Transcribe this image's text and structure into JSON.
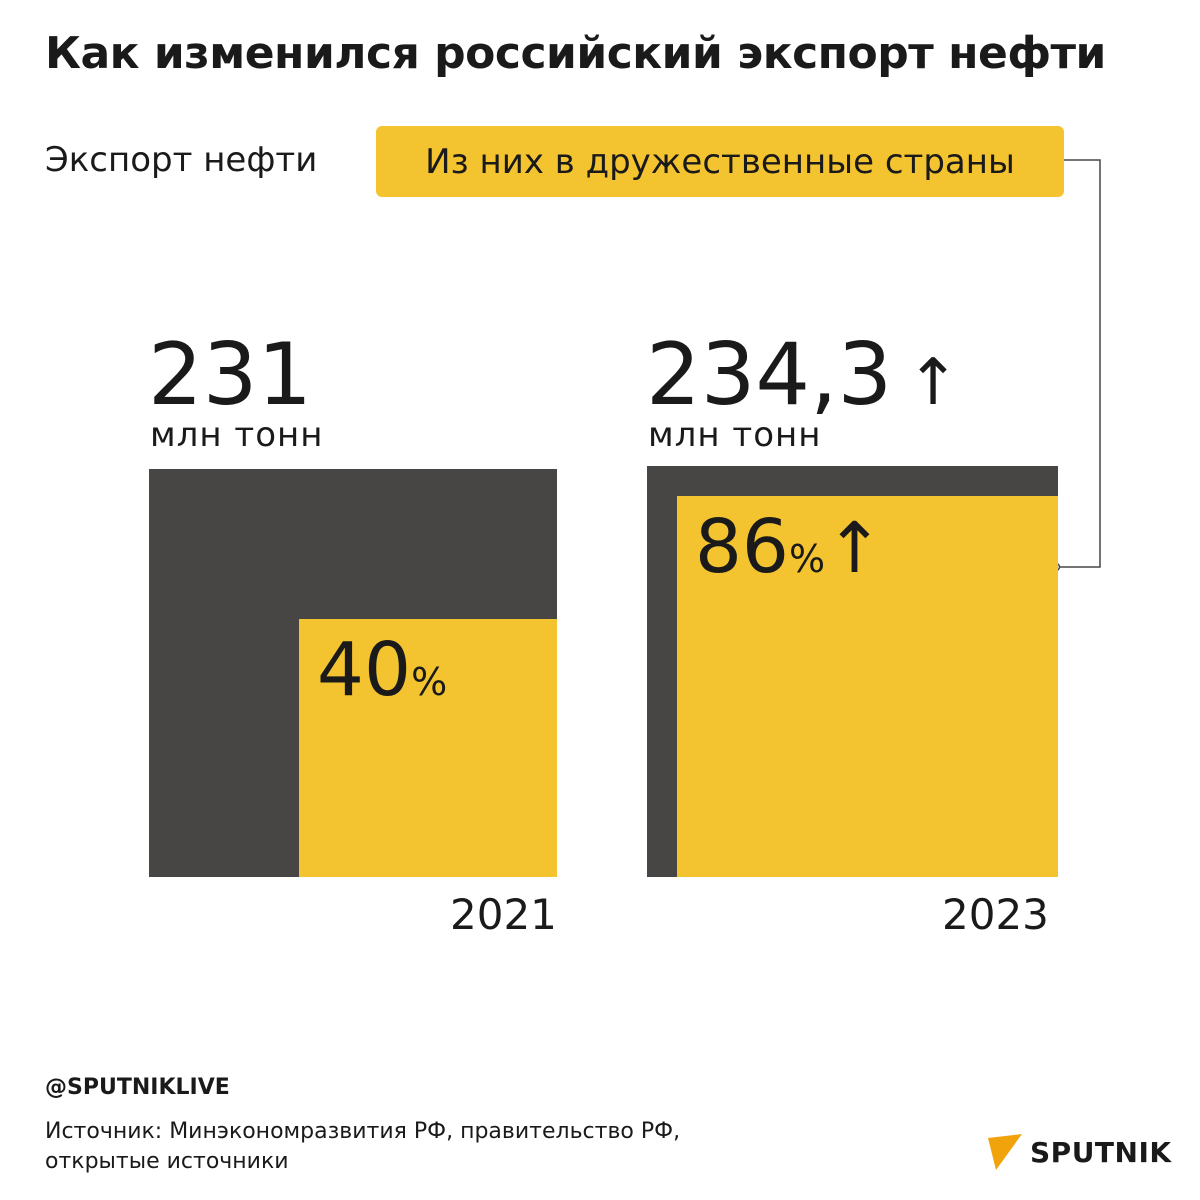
{
  "title": "Как изменился российский экспорт нефти",
  "legend": {
    "total_label": "Экспорт нефти",
    "friendly_label": "Из них в дружественные страны"
  },
  "colors": {
    "dark": "#474644",
    "yellow": "#f4c430",
    "text": "#1a1a1a",
    "brand_orange": "#f0a30a"
  },
  "chart_data": {
    "type": "nested-square",
    "unit": "млн тонн",
    "periods": [
      {
        "year": "2021",
        "total": 231,
        "total_label": "231",
        "share_pct": 40,
        "share_label": "40",
        "arrow": ""
      },
      {
        "year": "2023",
        "total": 234.3,
        "total_label": "234,3",
        "share_pct": 86,
        "share_label": "86",
        "arrow": "↑"
      }
    ],
    "percent_sign": "%"
  },
  "footer": {
    "handle": "@SPUTNIKLIVE",
    "source_line1": "Источник:  Минэкономразвития РФ, правительство РФ,",
    "source_line2": "открытые источники",
    "brand": "SPUTNIK",
    "watermark": "SPUTNIK"
  }
}
